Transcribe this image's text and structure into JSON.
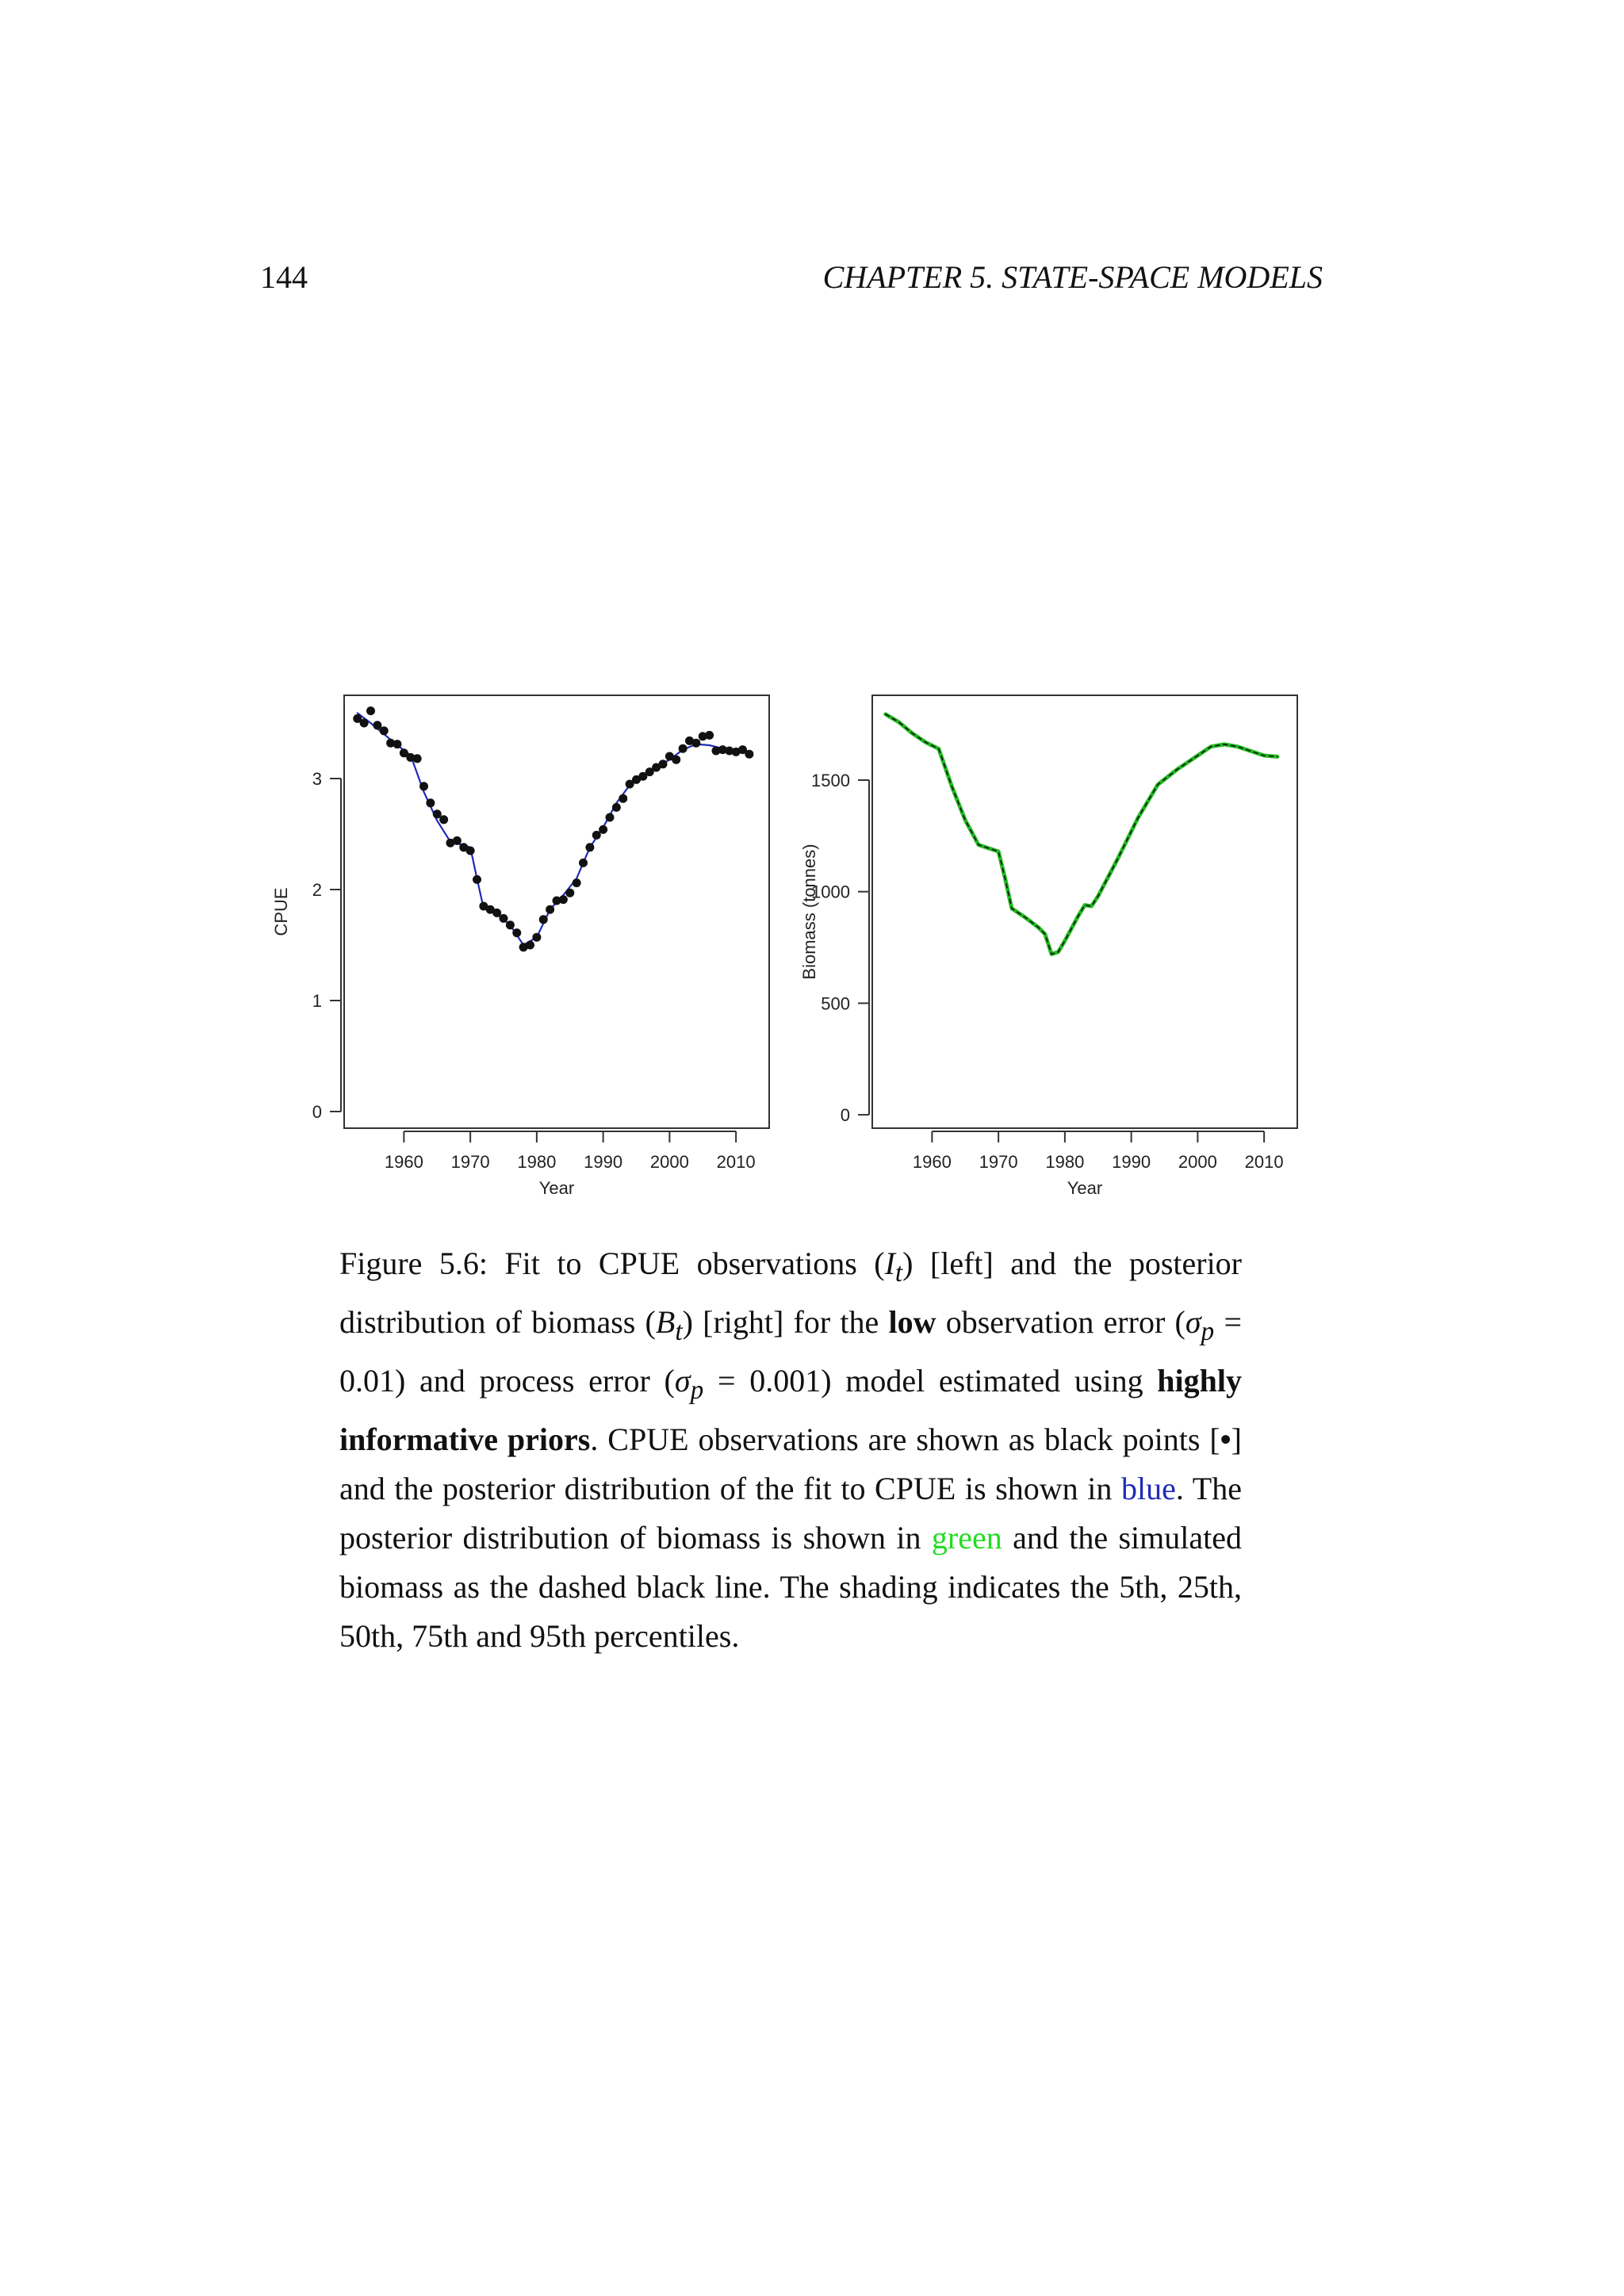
{
  "header": {
    "page_number": "144",
    "chapter": "CHAPTER 5.  STATE-SPACE MODELS"
  },
  "chart_data": [
    {
      "type": "line",
      "xlabel": "Year",
      "ylabel": "CPUE",
      "xlim": [
        1951,
        2015
      ],
      "ylim": [
        -0.15,
        3.75
      ],
      "x_ticks": [
        1960,
        1970,
        1980,
        1990,
        2000,
        2010
      ],
      "y_ticks": [
        0,
        1,
        2,
        3
      ],
      "grid": false,
      "series": [
        {
          "kind": "fit-line",
          "color": "#1f2bb8",
          "x": [
            1953,
            1955,
            1957,
            1959,
            1961,
            1963,
            1965,
            1967,
            1969,
            1970,
            1971,
            1972,
            1974,
            1976,
            1978,
            1980,
            1982,
            1984,
            1986,
            1988,
            1990,
            1992,
            1994,
            1996,
            1998,
            2000,
            2002,
            2004,
            2006,
            2008,
            2010,
            2012
          ],
          "y": [
            3.59,
            3.5,
            3.4,
            3.3,
            3.21,
            2.88,
            2.62,
            2.43,
            2.4,
            2.38,
            2.1,
            1.83,
            1.78,
            1.68,
            1.5,
            1.57,
            1.82,
            1.95,
            2.1,
            2.38,
            2.56,
            2.78,
            2.94,
            3.03,
            3.1,
            3.17,
            3.26,
            3.31,
            3.3,
            3.27,
            3.25,
            3.23
          ]
        },
        {
          "kind": "points",
          "color": "#111111",
          "x": [
            1953,
            1954,
            1955,
            1956,
            1957,
            1958,
            1959,
            1960,
            1961,
            1962,
            1963,
            1964,
            1965,
            1966,
            1967,
            1968,
            1969,
            1970,
            1971,
            1972,
            1973,
            1974,
            1975,
            1976,
            1977,
            1978,
            1979,
            1980,
            1981,
            1982,
            1983,
            1984,
            1985,
            1986,
            1987,
            1988,
            1989,
            1990,
            1991,
            1992,
            1993,
            1994,
            1995,
            1996,
            1997,
            1998,
            1999,
            2000,
            2001,
            2002,
            2003,
            2004,
            2005,
            2006,
            2007,
            2008,
            2009,
            2010,
            2011,
            2012
          ],
          "y": [
            3.54,
            3.5,
            3.61,
            3.48,
            3.43,
            3.32,
            3.31,
            3.23,
            3.19,
            3.18,
            2.93,
            2.78,
            2.68,
            2.63,
            2.42,
            2.44,
            2.38,
            2.35,
            2.09,
            1.85,
            1.82,
            1.79,
            1.74,
            1.68,
            1.61,
            1.48,
            1.5,
            1.57,
            1.73,
            1.82,
            1.9,
            1.91,
            1.97,
            2.06,
            2.24,
            2.38,
            2.49,
            2.54,
            2.65,
            2.74,
            2.82,
            2.95,
            2.99,
            3.02,
            3.06,
            3.1,
            3.13,
            3.2,
            3.17,
            3.27,
            3.34,
            3.32,
            3.38,
            3.39,
            3.25,
            3.26,
            3.25,
            3.24,
            3.26,
            3.22
          ]
        }
      ]
    },
    {
      "type": "line",
      "xlabel": "Year",
      "ylabel": "Biomass (tonnes)",
      "xlim": [
        1951,
        2015
      ],
      "ylim": [
        -60,
        1880
      ],
      "x_ticks": [
        1960,
        1970,
        1980,
        1990,
        2000,
        2010
      ],
      "y_ticks": [
        0,
        500,
        1000,
        1500
      ],
      "grid": false,
      "series": [
        {
          "kind": "posterior",
          "color": "#22bb22",
          "x": [
            1953,
            1955,
            1957,
            1959,
            1961,
            1963,
            1965,
            1967,
            1969,
            1970,
            1971,
            1972,
            1974,
            1976,
            1977,
            1978,
            1979,
            1980,
            1982,
            1983,
            1984,
            1985,
            1988,
            1991,
            1994,
            1997,
            2000,
            2002,
            2004,
            2006,
            2008,
            2010,
            2012
          ],
          "y": [
            1795,
            1760,
            1710,
            1670,
            1640,
            1470,
            1320,
            1210,
            1190,
            1180,
            1060,
            925,
            885,
            840,
            810,
            720,
            730,
            780,
            890,
            940,
            935,
            980,
            1150,
            1330,
            1480,
            1550,
            1610,
            1650,
            1660,
            1650,
            1630,
            1610,
            1605
          ]
        },
        {
          "kind": "simulated",
          "color": "#111111",
          "dashed": true,
          "x": [
            1953,
            1955,
            1957,
            1959,
            1961,
            1963,
            1965,
            1967,
            1969,
            1970,
            1971,
            1972,
            1974,
            1976,
            1977,
            1978,
            1979,
            1980,
            1982,
            1983,
            1984,
            1985,
            1988,
            1991,
            1994,
            1997,
            2000,
            2002,
            2004,
            2006,
            2008,
            2010,
            2012
          ],
          "y": [
            1795,
            1760,
            1710,
            1670,
            1640,
            1470,
            1320,
            1210,
            1190,
            1180,
            1060,
            925,
            885,
            840,
            810,
            720,
            730,
            780,
            890,
            940,
            935,
            980,
            1150,
            1330,
            1480,
            1550,
            1610,
            1650,
            1660,
            1650,
            1630,
            1610,
            1605
          ]
        }
      ]
    }
  ],
  "caption": {
    "p1": "Figure 5.6: Fit to CPUE observations (",
    "m1": "I",
    "m1s": "t",
    "p2": ") [left] and the posterior distribution of biomass (",
    "m2": "B",
    "m2s": "t",
    "p3": ") [right] for the ",
    "b1": "low",
    "p4": " observation error (",
    "m3": "σ",
    "m3s": "p",
    "m3v": " = 0.01",
    "p5": ") and process error (",
    "m4": "σ",
    "m4s": "p",
    "m4v": " = 0.001",
    "p6": ") model estimated using ",
    "b2": "highly informative priors",
    "p7": ". CPUE observations are shown as black points [",
    "b3": "•",
    "p8": "] and the posterior distribution of the fit to CPUE is shown in ",
    "c1": "blue",
    "p9": ". The posterior distribution of biomass is shown in ",
    "c2": "green",
    "p10": " and the simulated biomass as the dashed black line. The shading indicates the 5th, 25th, 50th, 75th and 95th percentiles."
  }
}
